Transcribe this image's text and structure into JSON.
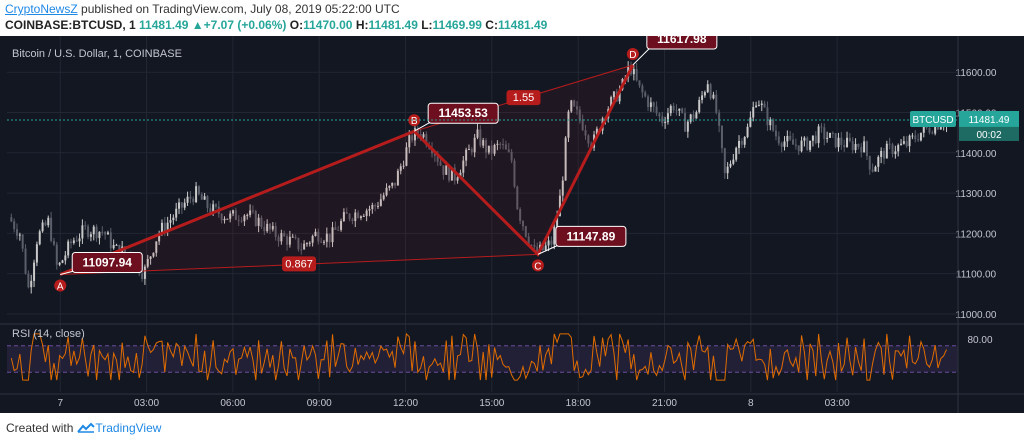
{
  "header": {
    "brand": "CryptoNewsZ",
    "published_text": "published on TradingView.com, July 08, 2019 05:22:00 UTC",
    "symbol": "COINBASE:BTCUSD, 1",
    "last": "11481.49",
    "change": "+7.07 (+0.06%)",
    "o_label": "O:",
    "o_value": "11470.00",
    "h_label": "H:",
    "h_value": "11481.49",
    "l_label": "L:",
    "l_value": "11469.99",
    "c_label": "C:",
    "c_value": "11481.49"
  },
  "footer": {
    "created_with": "Created with",
    "brand": "TradingView"
  },
  "colors": {
    "bg": "#131722",
    "grid": "#232733",
    "up": "#c9c9c9",
    "down": "#5b5f6a",
    "pattern": "#b71c1c",
    "rsi_line": "#e06c00",
    "rsi_band": "#6a4c9c",
    "price_line": "#26a69a",
    "axis_text": "#c3c6ce"
  },
  "chart_data": [
    {
      "type": "candlestick",
      "title": "Bitcoin / U.S. Dollar, 1, COINBASE",
      "ylim": [
        10980,
        11680
      ],
      "y_ticks": [
        11000,
        11100,
        11200,
        11300,
        11400,
        11500,
        11600
      ],
      "y_tick_labels": [
        "11000.00",
        "11100.00",
        "11200.00",
        "11300.00",
        "11400.00",
        "11500.00",
        "11600.00"
      ],
      "x_tick_labels": [
        "7",
        "03:00",
        "06:00",
        "09:00",
        "12:00",
        "15:00",
        "18:00",
        "21:00",
        "8",
        "03:00"
      ],
      "price_path": [
        [
          -1.7,
          11240
        ],
        [
          -1.3,
          11200
        ],
        [
          -1.0,
          11060
        ],
        [
          -0.7,
          11190
        ],
        [
          -0.3,
          11230
        ],
        [
          0.0,
          11110
        ],
        [
          0.5,
          11180
        ],
        [
          1.0,
          11210
        ],
        [
          1.6,
          11205
        ],
        [
          2.0,
          11160
        ],
        [
          2.5,
          11150
        ],
        [
          3.0,
          11100
        ],
        [
          3.5,
          11200
        ],
        [
          4.0,
          11240
        ],
        [
          4.5,
          11280
        ],
        [
          4.8,
          11300
        ],
        [
          5.3,
          11260
        ],
        [
          6.0,
          11240
        ],
        [
          6.5,
          11250
        ],
        [
          7.0,
          11230
        ],
        [
          7.5,
          11200
        ],
        [
          8.0,
          11185
        ],
        [
          8.5,
          11165
        ],
        [
          9.0,
          11200
        ],
        [
          9.5,
          11190
        ],
        [
          10.0,
          11240
        ],
        [
          10.5,
          11255
        ],
        [
          11.0,
          11265
        ],
        [
          11.4,
          11300
        ],
        [
          11.7,
          11320
        ],
        [
          12.0,
          11380
        ],
        [
          12.3,
          11440
        ],
        [
          12.6,
          11453
        ],
        [
          13.0,
          11420
        ],
        [
          13.4,
          11360
        ],
        [
          13.8,
          11340
        ],
        [
          14.2,
          11390
        ],
        [
          14.6,
          11440
        ],
        [
          15.0,
          11400
        ],
        [
          15.4,
          11420
        ],
        [
          15.8,
          11380
        ],
        [
          16.0,
          11260
        ],
        [
          16.3,
          11200
        ],
        [
          16.6,
          11150
        ],
        [
          16.9,
          11160
        ],
        [
          17.2,
          11180
        ],
        [
          17.5,
          11300
        ],
        [
          17.8,
          11520
        ],
        [
          18.2,
          11480
        ],
        [
          18.6,
          11420
        ],
        [
          19.0,
          11500
        ],
        [
          19.4,
          11540
        ],
        [
          19.6,
          11560
        ],
        [
          19.9,
          11617
        ],
        [
          20.2,
          11560
        ],
        [
          20.6,
          11520
        ],
        [
          21.0,
          11480
        ],
        [
          21.4,
          11520
        ],
        [
          21.8,
          11470
        ],
        [
          22.2,
          11500
        ],
        [
          22.6,
          11580
        ],
        [
          22.9,
          11500
        ],
        [
          23.2,
          11340
        ],
        [
          23.6,
          11420
        ],
        [
          24.0,
          11460
        ],
        [
          24.3,
          11540
        ],
        [
          24.7,
          11480
        ],
        [
          25.0,
          11440
        ],
        [
          25.5,
          11420
        ],
        [
          26.0,
          11420
        ],
        [
          26.5,
          11450
        ],
        [
          27.0,
          11430
        ],
        [
          27.5,
          11420
        ],
        [
          28.0,
          11420
        ],
        [
          28.3,
          11360
        ],
        [
          28.7,
          11400
        ],
        [
          29.0,
          11410
        ],
        [
          29.5,
          11420
        ],
        [
          30.0,
          11450
        ],
        [
          30.5,
          11470
        ],
        [
          30.9,
          11481
        ]
      ],
      "pattern": {
        "points": [
          {
            "name": "A",
            "x": 0.0,
            "y": 11097.94,
            "label": "11097.94"
          },
          {
            "name": "B",
            "x": 12.3,
            "y": 11453.53,
            "label": "11453.53"
          },
          {
            "name": "C",
            "x": 16.6,
            "y": 11147.89,
            "label": "11147.89"
          },
          {
            "name": "D",
            "x": 19.9,
            "y": 11617.98,
            "label": "11617.98"
          }
        ],
        "ratios": [
          {
            "from": "A",
            "to": "C",
            "label": "0.867"
          },
          {
            "from": "B",
            "to": "D",
            "label": "1.55"
          }
        ]
      },
      "price_label": "BTCUSD",
      "price_value": "11481.49",
      "countdown": "00:02"
    },
    {
      "type": "line",
      "title": "RSI (14, close)",
      "ylim": [
        0,
        100
      ],
      "band": [
        30,
        70
      ],
      "y_tick_labels": [
        "80.00"
      ],
      "values_note": "oscillating between about 20 and 85"
    }
  ]
}
